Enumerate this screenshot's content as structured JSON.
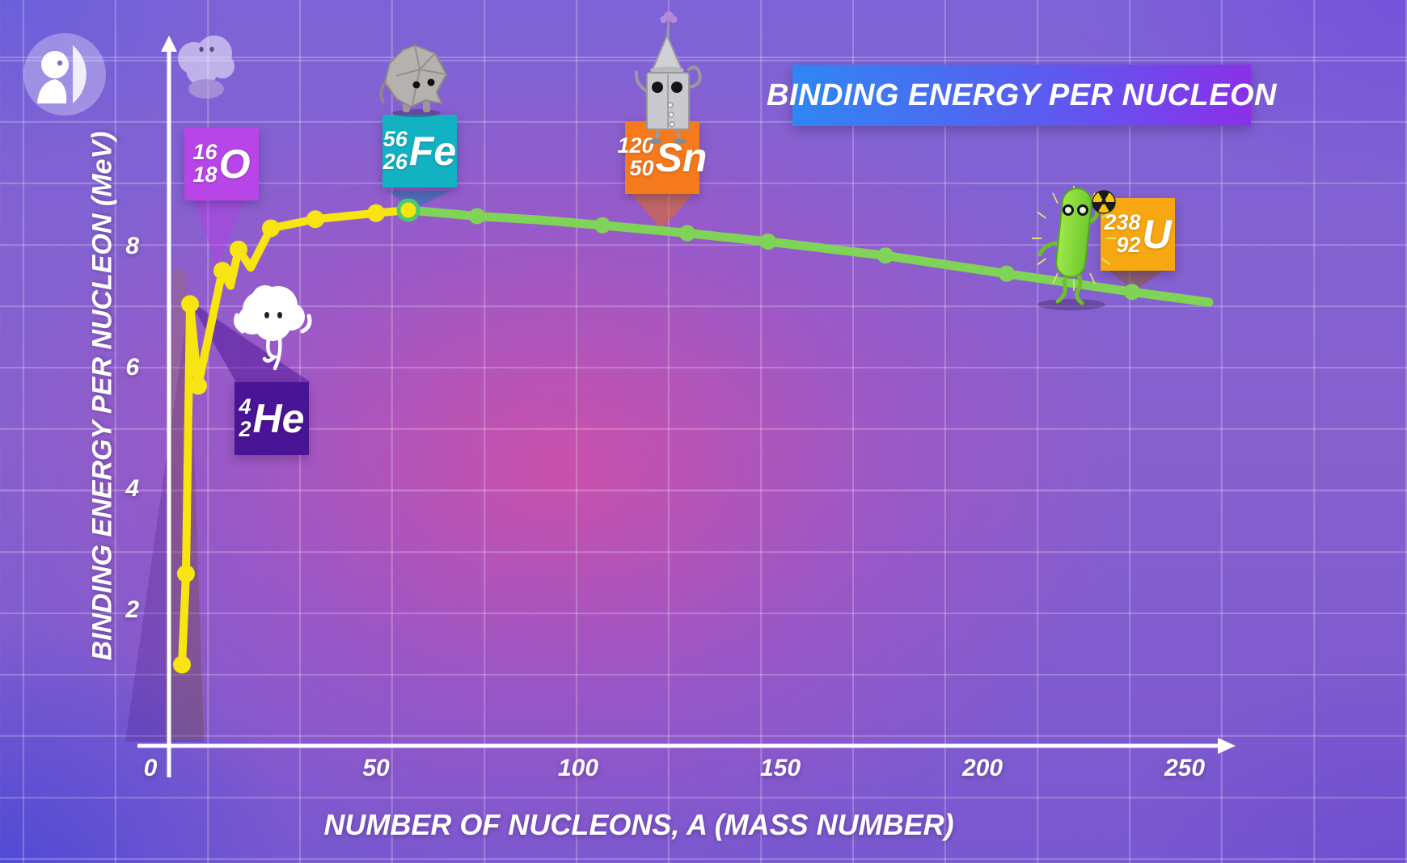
{
  "logo": {
    "name": "PBS"
  },
  "banner": {
    "title": "BINDING ENERGY PER NUCLEON"
  },
  "axes": {
    "y_label": "BINDING ENERGY PER NUCLEON (MeV)",
    "x_label": "NUMBER OF NUCLEONS, A (MASS NUMBER)",
    "y_ticks": [
      "8",
      "6",
      "4",
      "2"
    ],
    "x_ticks": [
      "0",
      "50",
      "100",
      "150",
      "200",
      "250"
    ]
  },
  "callouts": {
    "oxygen": {
      "mass": "16",
      "atomic": "18",
      "symbol": "O",
      "character": "ghost-cloud"
    },
    "helium": {
      "mass": "4",
      "atomic": "2",
      "symbol": "He",
      "character": "white-cloud"
    },
    "iron": {
      "mass": "56",
      "atomic": "26",
      "symbol": "Fe",
      "character": "grey-rock"
    },
    "tin": {
      "mass": "120",
      "atomic": "50",
      "symbol": "Sn",
      "character": "tin-robot"
    },
    "uranium": {
      "mass": "238",
      "atomic": "92",
      "symbol": "U",
      "character": "radioactive-rod"
    }
  },
  "palette": {
    "background_center": "#c4559f",
    "background_edge": "#6b59d6",
    "grid_line": "#ffffff",
    "axis": "#ffffff",
    "curve_light": "#f7e411",
    "curve_heavy": "#7fd457",
    "banner_left": "#2f86f4",
    "banner_right": "#8a30e8",
    "box_oxygen": "#b845e8",
    "box_helium": "#4a1496",
    "box_iron": "#12b2c2",
    "box_tin": "#f5791d",
    "box_uranium": "#f7a711"
  },
  "chart_data": {
    "type": "line",
    "title": "BINDING ENERGY PER NUCLEON",
    "xlabel": "NUMBER OF NUCLEONS, A (MASS NUMBER)",
    "ylabel": "BINDING ENERGY PER NUCLEON (MeV)",
    "xlim": [
      0,
      290
    ],
    "ylim": [
      0,
      9.5
    ],
    "x_ticks": [
      0,
      50,
      100,
      150,
      200,
      250
    ],
    "y_ticks": [
      2,
      4,
      6,
      8
    ],
    "grid": true,
    "legend": "none",
    "series": [
      {
        "name": "light-nuclei-yellow",
        "color": "#f7e411",
        "points": [
          [
            2,
            1.1
          ],
          [
            3,
            2.6
          ],
          [
            4,
            7.05
          ],
          [
            6,
            5.7
          ],
          [
            12,
            7.6
          ],
          [
            14,
            7.35
          ],
          [
            16,
            7.95
          ],
          [
            19,
            7.65
          ],
          [
            24,
            8.3
          ],
          [
            35,
            8.45
          ],
          [
            50,
            8.55
          ],
          [
            58,
            8.6
          ]
        ],
        "dot_points": [
          [
            2,
            1.1
          ],
          [
            3,
            2.6
          ],
          [
            4,
            7.05
          ],
          [
            6,
            5.7
          ],
          [
            12,
            7.6
          ],
          [
            16,
            7.95
          ],
          [
            24,
            8.3
          ],
          [
            35,
            8.45
          ],
          [
            50,
            8.55
          ]
        ]
      },
      {
        "name": "heavy-nuclei-green",
        "color": "#7fd457",
        "points": [
          [
            58,
            8.6
          ],
          [
            75,
            8.5
          ],
          [
            90,
            8.44
          ],
          [
            106,
            8.35
          ],
          [
            127,
            8.22
          ],
          [
            147,
            8.08
          ],
          [
            176,
            7.85
          ],
          [
            206,
            7.55
          ],
          [
            237,
            7.25
          ],
          [
            256,
            7.08
          ]
        ],
        "dot_points": [
          [
            75,
            8.5
          ],
          [
            106,
            8.35
          ],
          [
            127,
            8.22
          ],
          [
            147,
            8.08
          ],
          [
            176,
            7.85
          ],
          [
            206,
            7.55
          ],
          [
            237,
            7.25
          ]
        ]
      }
    ],
    "peak_marker": {
      "A": 58,
      "E": 8.6,
      "label": "Fe-56 peak"
    },
    "annotations": [
      {
        "isotope": "16/18 O",
        "A": 16,
        "E": 7.95
      },
      {
        "isotope": "4/2 He",
        "A": 4,
        "E": 7.05
      },
      {
        "isotope": "56/26 Fe",
        "A": 56,
        "E": 8.6
      },
      {
        "isotope": "120/50 Sn",
        "A": 120,
        "E": 8.3
      },
      {
        "isotope": "238/92 U",
        "A": 238,
        "E": 7.25
      }
    ]
  }
}
